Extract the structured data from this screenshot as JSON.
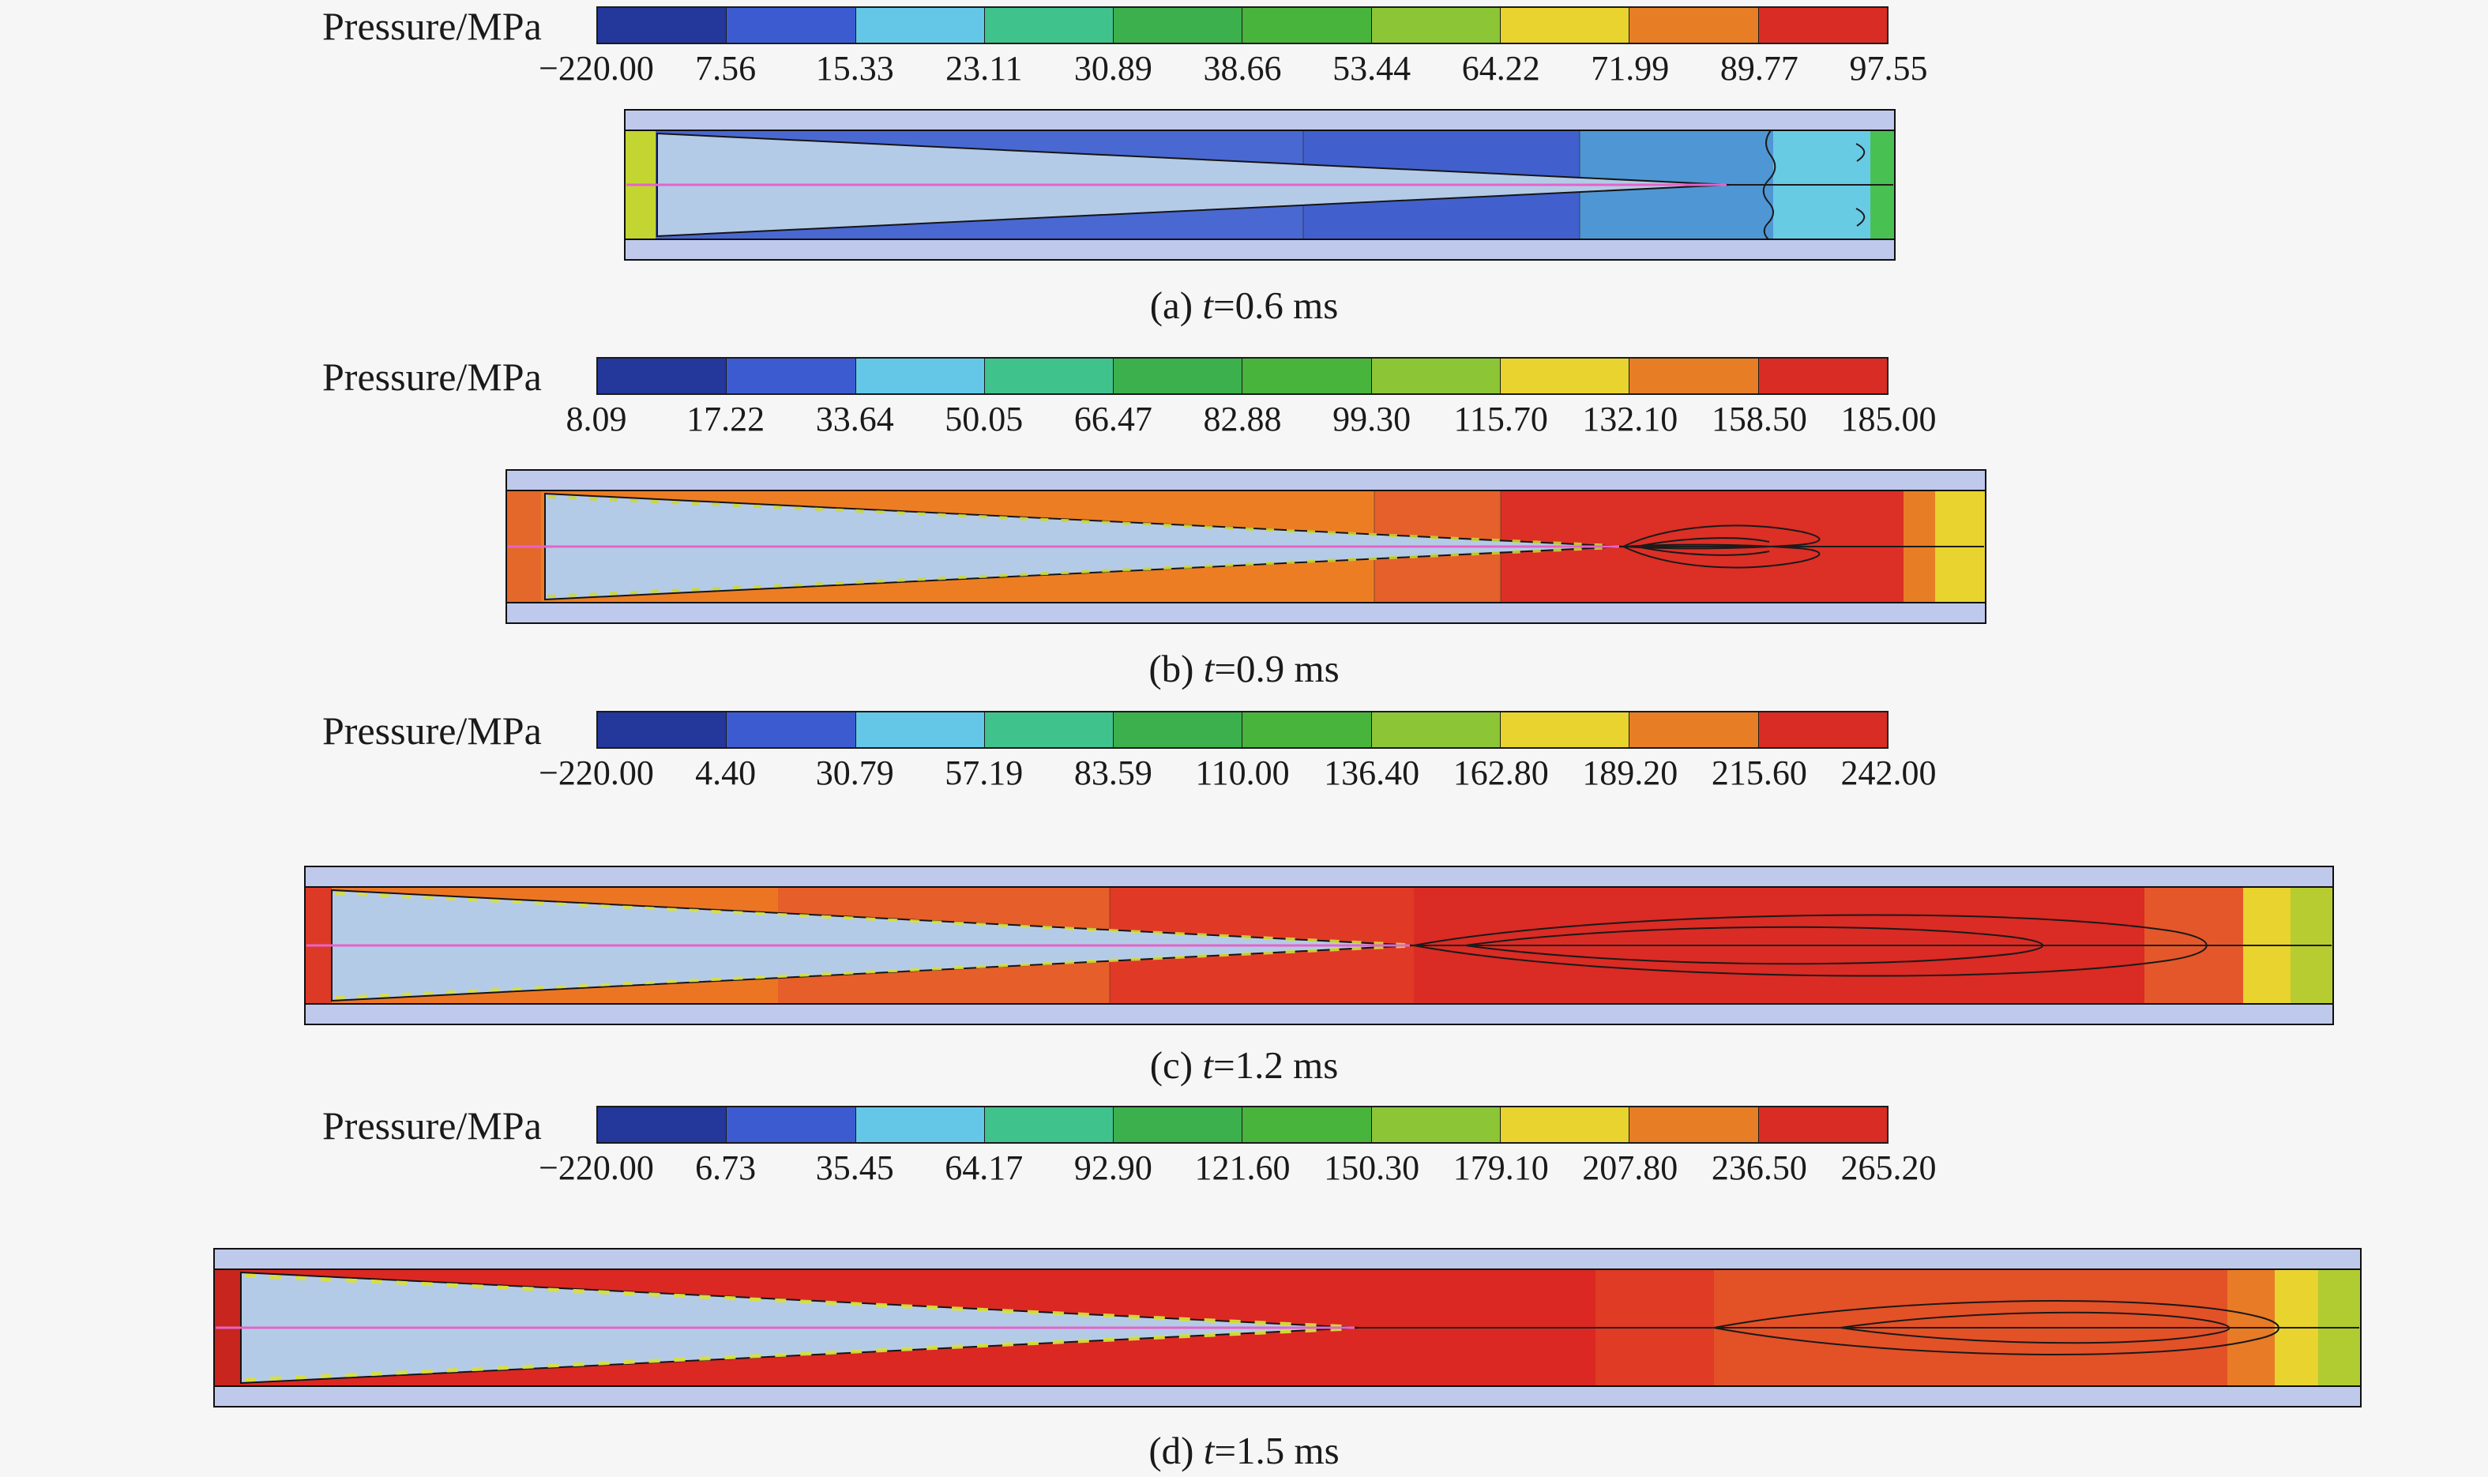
{
  "colors": {
    "background": "#f6f6f7",
    "wall": "#bfc9ec",
    "cone": "#b3cbe7",
    "centerline_pink": "#e564c8"
  },
  "colorbar": {
    "label": "Pressure/MPa",
    "colors": [
      "#24379b",
      "#3d5bd0",
      "#64c7e8",
      "#40c28c",
      "#3cb04c",
      "#49b43c",
      "#8cc636",
      "#e9d32e",
      "#e77d25",
      "#d92c24"
    ]
  },
  "panels": [
    {
      "colorbar_label": "Pressure/MPa",
      "caption_pre": "(a) ",
      "caption_italic": "t",
      "caption_post": "=0.6 ms",
      "ticks_display": [
        "−220.00",
        "7.56",
        "15.33",
        "23.11",
        "30.89",
        "38.66",
        "53.44",
        "64.22",
        "71.99",
        "89.77",
        "97.55"
      ]
    },
    {
      "colorbar_label": "Pressure/MPa",
      "caption_pre": "(b) ",
      "caption_italic": "t",
      "caption_post": "=0.9 ms",
      "ticks_display": [
        "8.09",
        "17.22",
        "33.64",
        "50.05",
        "66.47",
        "82.88",
        "99.30",
        "115.70",
        "132.10",
        "158.50",
        "185.00"
      ]
    },
    {
      "colorbar_label": "Pressure/MPa",
      "caption_pre": "(c) ",
      "caption_italic": "t",
      "caption_post": "=1.2 ms",
      "ticks_display": [
        "−220.00",
        "4.40",
        "30.79",
        "57.19",
        "83.59",
        "110.00",
        "136.40",
        "162.80",
        "189.20",
        "215.60",
        "242.00"
      ]
    },
    {
      "colorbar_label": "Pressure/MPa",
      "caption_pre": "(d) ",
      "caption_italic": "t",
      "caption_post": "=1.5 ms",
      "ticks_display": [
        "−220.00",
        "6.73",
        "35.45",
        "64.17",
        "92.90",
        "121.60",
        "150.30",
        "179.10",
        "207.80",
        "236.50",
        "265.20"
      ]
    }
  ],
  "chart_data": [
    {
      "type": "heatmap",
      "title": "(a) t=0.6 ms",
      "legend": "Pressure/MPa",
      "legend_position": "top",
      "colorbar_ticks": [
        -220.0,
        7.56,
        15.33,
        23.11,
        30.89,
        38.66,
        53.44,
        64.22,
        71.99,
        89.77,
        97.55
      ],
      "colorbar_colors": [
        "#24379b",
        "#3d5bd0",
        "#64c7e8",
        "#40c28c",
        "#3cb04c",
        "#49b43c",
        "#8cc636",
        "#e9d32e",
        "#e77d25",
        "#d92c24"
      ],
      "units": "MPa",
      "description": "Axisymmetric pressure contour of projectile in launch tube at t=0.6 ms; low blue pressures around tapered projectile, cyan zone ahead of base"
    },
    {
      "type": "heatmap",
      "title": "(b) t=0.9 ms",
      "legend": "Pressure/MPa",
      "legend_position": "top",
      "colorbar_ticks": [
        8.09,
        17.22,
        33.64,
        50.05,
        66.47,
        82.88,
        99.3,
        115.7,
        132.1,
        158.5,
        185.0
      ],
      "colorbar_colors": [
        "#24379b",
        "#3d5bd0",
        "#64c7e8",
        "#40c28c",
        "#3cb04c",
        "#49b43c",
        "#8cc636",
        "#e9d32e",
        "#e77d25",
        "#d92c24"
      ],
      "units": "MPa",
      "description": "Pressure contour at t=0.9 ms; orange field left, red zone behind cone tip with closed contour loops, yellow band at right end"
    },
    {
      "type": "heatmap",
      "title": "(c) t=1.2 ms",
      "legend": "Pressure/MPa",
      "legend_position": "top",
      "colorbar_ticks": [
        -220.0,
        4.4,
        30.79,
        57.19,
        83.59,
        110.0,
        136.4,
        162.8,
        189.2,
        215.6,
        242.0
      ],
      "colorbar_colors": [
        "#24379b",
        "#3d5bd0",
        "#64c7e8",
        "#40c28c",
        "#3cb04c",
        "#49b43c",
        "#8cc636",
        "#e9d32e",
        "#e77d25",
        "#d92c24"
      ],
      "units": "MPa",
      "description": "Pressure contour at t=1.2 ms; orange-to-red field, long nested contour loops behind cone, yellow-green bands at right end"
    },
    {
      "type": "heatmap",
      "title": "(d) t=1.5 ms",
      "legend": "Pressure/MPa",
      "legend_position": "top",
      "colorbar_ticks": [
        -220.0,
        6.73,
        35.45,
        64.17,
        92.9,
        121.6,
        150.3,
        179.1,
        207.8,
        236.5,
        265.2
      ],
      "colorbar_colors": [
        "#24379b",
        "#3d5bd0",
        "#64c7e8",
        "#40c28c",
        "#3cb04c",
        "#49b43c",
        "#8cc636",
        "#e9d32e",
        "#e77d25",
        "#d92c24"
      ],
      "units": "MPa",
      "description": "Pressure contour at t=1.5 ms; deep red field, large nested contour loops right of cone, yellow and green bands at right end"
    }
  ]
}
